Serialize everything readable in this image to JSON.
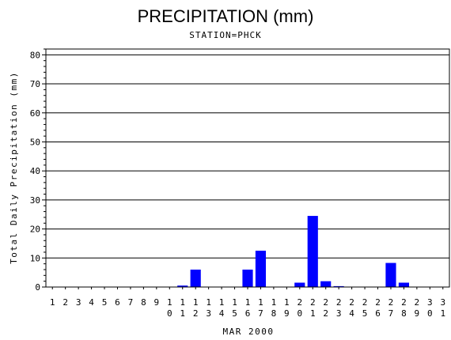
{
  "chart_data": {
    "type": "bar",
    "title": "PRECIPITATION (mm)",
    "subtitle": "STATION=PHCK",
    "xlabel": "MAR 2000",
    "ylabel": "Total Daily Precipitation (mm)",
    "ylim": [
      0,
      82
    ],
    "yticks": [
      0,
      10,
      20,
      30,
      40,
      50,
      60,
      70,
      80
    ],
    "grid": true,
    "bar_color": "#0000ff",
    "categories": [
      "1",
      "2",
      "3",
      "4",
      "5",
      "6",
      "7",
      "8",
      "9",
      "10",
      "11",
      "12",
      "13",
      "14",
      "15",
      "16",
      "17",
      "18",
      "19",
      "20",
      "21",
      "22",
      "23",
      "24",
      "25",
      "26",
      "27",
      "28",
      "29",
      "30",
      "31"
    ],
    "values": [
      0,
      0,
      0,
      0,
      0,
      0,
      0,
      0,
      0,
      0,
      0.5,
      6,
      0,
      0,
      0,
      6,
      12.5,
      0,
      0,
      1.5,
      24.5,
      2,
      0.3,
      0,
      0,
      0,
      8.3,
      1.5,
      0,
      0,
      0
    ]
  }
}
